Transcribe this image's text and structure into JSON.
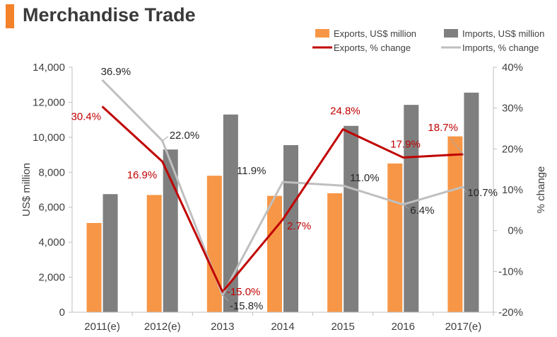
{
  "header": {
    "title": "Merchandise Trade"
  },
  "colors": {
    "accent": "#f4822a",
    "exports_bar": "#f79646",
    "imports_bar": "#7f7f7f",
    "exports_line": "#c00000",
    "imports_line": "#bfbfbf",
    "axis": "#bfbfbf",
    "label_dark": "#262626"
  },
  "chart_data": {
    "type": "bar",
    "categories": [
      "2011(e)",
      "2012(e)",
      "2013",
      "2014",
      "2015",
      "2016",
      "2017(e)"
    ],
    "ylabel": "US$ million",
    "y2label": "% change",
    "ylim": [
      0,
      14000
    ],
    "y2lim": [
      -20,
      40
    ],
    "yticks": [
      "0",
      "2,000",
      "4,000",
      "6,000",
      "8,000",
      "10,000",
      "12,000",
      "14,000"
    ],
    "y2ticks": [
      "-20%",
      "-10%",
      "0%",
      "10%",
      "20%",
      "30%",
      "40%"
    ],
    "legend_position": "top-right",
    "grid": false,
    "series": [
      {
        "name": "Exports, US$ million",
        "kind": "bar",
        "axis": "left",
        "values": [
          5100,
          6700,
          7800,
          6650,
          6800,
          8500,
          10050
        ]
      },
      {
        "name": "Imports, US$ million",
        "kind": "bar",
        "axis": "left",
        "values": [
          6750,
          9300,
          11300,
          9550,
          10650,
          11850,
          12550
        ]
      },
      {
        "name": "Exports, % change",
        "kind": "line",
        "axis": "right",
        "values": [
          30.4,
          16.9,
          -15.0,
          2.7,
          24.8,
          17.9,
          18.7
        ],
        "labels": [
          "30.4%",
          "16.9%",
          "-15.0%",
          "2.7%",
          "24.8%",
          "17.9%",
          "18.7%"
        ]
      },
      {
        "name": "Imports, % change",
        "kind": "line",
        "axis": "right",
        "values": [
          36.9,
          22.0,
          -15.8,
          11.9,
          11.0,
          6.4,
          10.7
        ],
        "labels": [
          "36.9%",
          "22.0%",
          "-15.8%",
          "11.9%",
          "11.0%",
          "6.4%",
          "10.7%"
        ]
      }
    ]
  }
}
